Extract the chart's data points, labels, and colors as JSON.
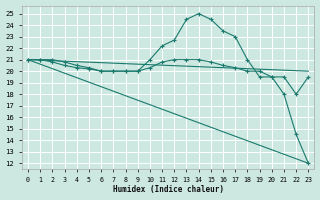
{
  "xlabel": "Humidex (Indice chaleur)",
  "bg_color": "#cce8e0",
  "grid_color": "#ffffff",
  "line_color": "#1a7a6e",
  "xlim": [
    -0.5,
    23.5
  ],
  "ylim": [
    11.5,
    25.7
  ],
  "xticks": [
    0,
    1,
    2,
    3,
    4,
    5,
    6,
    7,
    8,
    9,
    10,
    11,
    12,
    13,
    14,
    15,
    16,
    17,
    18,
    19,
    20,
    21,
    22,
    23
  ],
  "yticks": [
    12,
    13,
    14,
    15,
    16,
    17,
    18,
    19,
    20,
    21,
    22,
    23,
    24,
    25
  ],
  "series": [
    {
      "x": [
        0,
        1,
        2,
        3,
        4,
        5,
        6,
        7,
        8,
        9,
        10,
        11,
        12,
        13,
        14,
        15,
        16,
        17,
        18,
        19,
        20,
        21,
        22,
        23
      ],
      "y": [
        21.0,
        21.0,
        21.0,
        20.8,
        20.5,
        20.3,
        20.0,
        20.0,
        20.0,
        20.0,
        21.0,
        22.2,
        22.7,
        24.5,
        25.0,
        24.5,
        23.5,
        23.0,
        21.0,
        19.5,
        19.5,
        18.0,
        14.5,
        12.0
      ],
      "has_marker": true
    },
    {
      "x": [
        0,
        1,
        2,
        3,
        4,
        5,
        6,
        7,
        8,
        9,
        10,
        11,
        12,
        13,
        14,
        15,
        16,
        17,
        18,
        19,
        20,
        21,
        22,
        23
      ],
      "y": [
        21.0,
        21.0,
        20.8,
        20.5,
        20.3,
        20.2,
        20.0,
        20.0,
        20.0,
        20.0,
        20.3,
        20.8,
        21.0,
        21.0,
        21.0,
        20.8,
        20.5,
        20.3,
        20.0,
        20.0,
        19.5,
        19.5,
        18.0,
        19.5
      ],
      "has_marker": true
    },
    {
      "x": [
        0,
        23
      ],
      "y": [
        21.0,
        20.0
      ],
      "has_marker": false
    },
    {
      "x": [
        0,
        23
      ],
      "y": [
        21.0,
        12.0
      ],
      "has_marker": false
    }
  ]
}
